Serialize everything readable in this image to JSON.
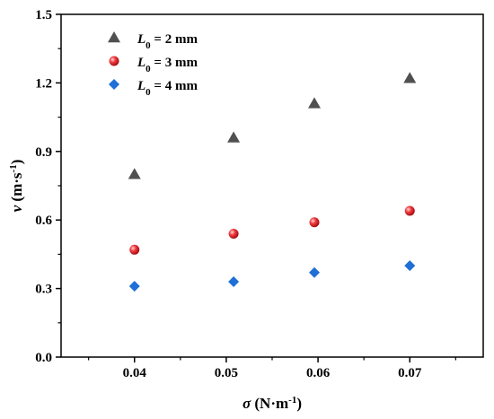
{
  "chart_data": {
    "type": "scatter",
    "title": "",
    "xlabel": {
      "symbol": "σ",
      "unit_open": " (N·m",
      "unit_exp": "-1",
      "unit_close": ")"
    },
    "ylabel": {
      "symbol": "v",
      "unit_open": " (m·s",
      "unit_exp": "-1",
      "unit_close": ")"
    },
    "xlim": [
      0.032,
      0.078
    ],
    "ylim": [
      0.0,
      1.5
    ],
    "xticks": [
      0.04,
      0.05,
      0.06,
      0.07
    ],
    "xtick_labels": [
      "0.04",
      "0.05",
      "0.06",
      "0.07"
    ],
    "yticks": [
      0.0,
      0.3,
      0.6,
      0.9,
      1.2,
      1.5
    ],
    "ytick_labels": [
      "0.0",
      "0.3",
      "0.6",
      "0.9",
      "1.2",
      "1.5"
    ],
    "grid": false,
    "legend_position": "top-left",
    "series": [
      {
        "name_var": "L",
        "name_sub": "0",
        "name_rest": " = 2 mm",
        "marker": "triangle",
        "color": "#505050",
        "x": [
          0.04,
          0.0508,
          0.0596,
          0.07
        ],
        "y": [
          0.8,
          0.96,
          1.11,
          1.22
        ]
      },
      {
        "name_var": "L",
        "name_sub": "0",
        "name_rest": " = 3 mm",
        "marker": "sphere",
        "color": "#e8262b",
        "x": [
          0.04,
          0.0508,
          0.0596,
          0.07
        ],
        "y": [
          0.47,
          0.54,
          0.59,
          0.64
        ]
      },
      {
        "name_var": "L",
        "name_sub": "0",
        "name_rest": " = 4 mm",
        "marker": "diamond",
        "color": "#1f6fd6",
        "x": [
          0.04,
          0.0508,
          0.0596,
          0.07
        ],
        "y": [
          0.31,
          0.33,
          0.37,
          0.4
        ]
      }
    ]
  }
}
